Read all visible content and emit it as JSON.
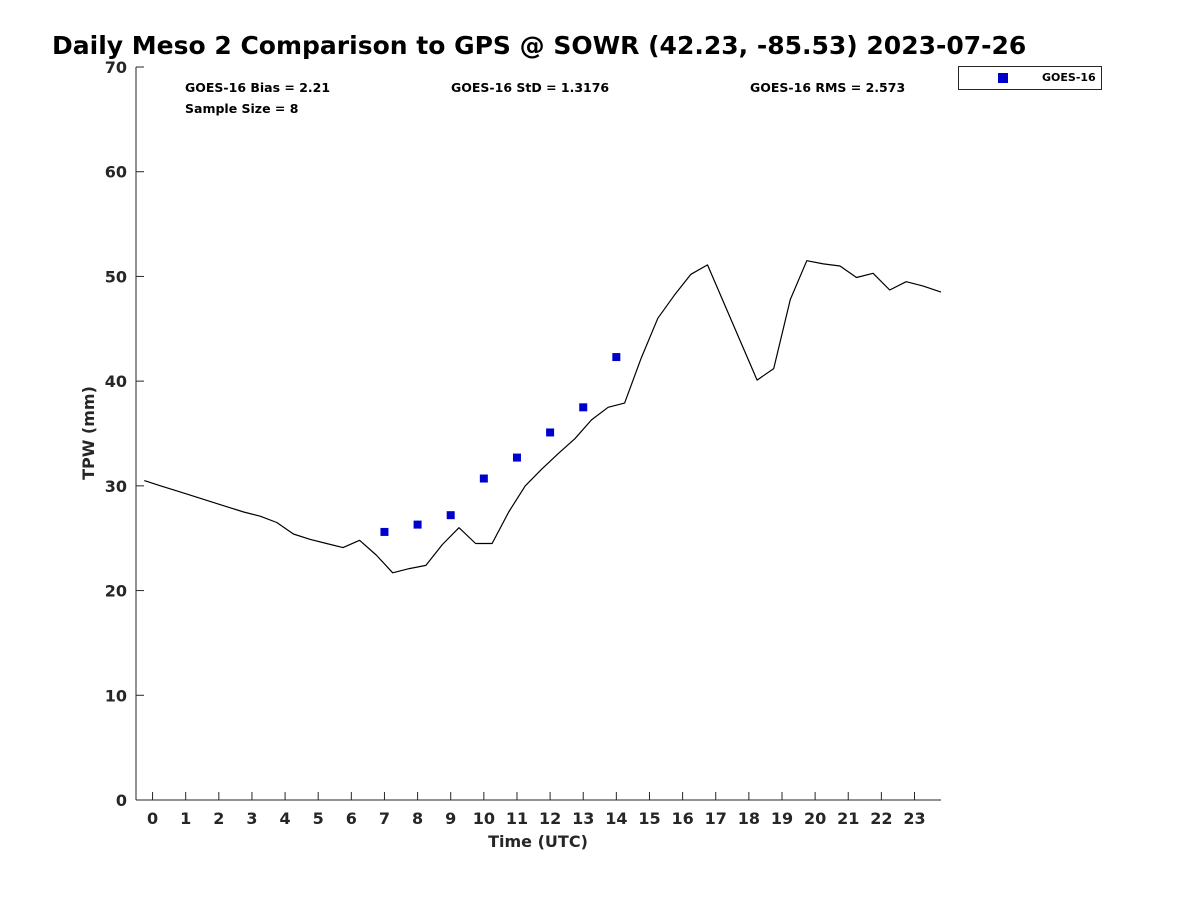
{
  "chart_data": {
    "type": "line",
    "title": "Daily Meso 2 Comparison to GPS @ SOWR (42.23, -85.53) 2023-07-26",
    "xlabel": "Time (UTC)",
    "ylabel": "TPW (mm)",
    "xlim": [
      -0.5,
      23.8
    ],
    "ylim": [
      0,
      70
    ],
    "xticks": [
      0,
      1,
      2,
      3,
      4,
      5,
      6,
      7,
      8,
      9,
      10,
      11,
      12,
      13,
      14,
      15,
      16,
      17,
      18,
      19,
      20,
      21,
      22,
      23
    ],
    "yticks": [
      0,
      10,
      20,
      30,
      40,
      50,
      60,
      70
    ],
    "grid": false,
    "legend_position": "top-right",
    "stats": {
      "bias": "GOES-16 Bias = 2.21",
      "std": "GOES-16 StD = 1.3176",
      "rms": "GOES-16 RMS = 2.573",
      "sample": "Sample Size = 8"
    },
    "series": [
      {
        "kind": "line",
        "color": "#000000",
        "x": [
          -0.25,
          0.25,
          0.75,
          1.25,
          1.75,
          2.25,
          2.75,
          3.25,
          3.75,
          4.25,
          4.75,
          5.25,
          5.75,
          6.25,
          6.75,
          7.25,
          7.75,
          8.25,
          8.75,
          9.25,
          9.75,
          10.25,
          10.75,
          11.25,
          11.75,
          12.25,
          12.75,
          13.25,
          13.75,
          14.25,
          14.75,
          15.25,
          15.75,
          16.25,
          16.75,
          18.25,
          18.75,
          19.25,
          19.75,
          20.25,
          20.75,
          21.25,
          21.75,
          22.25,
          22.75,
          23.25,
          23.8
        ],
        "y": [
          30.5,
          30.0,
          29.5,
          29.0,
          28.5,
          28.0,
          27.5,
          27.1,
          26.5,
          25.4,
          24.9,
          24.5,
          24.1,
          24.8,
          23.4,
          21.7,
          22.1,
          22.4,
          24.4,
          26.0,
          24.5,
          24.5,
          27.5,
          30.0,
          31.6,
          33.1,
          34.5,
          36.3,
          37.5,
          37.9,
          42.2,
          46.0,
          48.2,
          50.2,
          51.1,
          40.1,
          41.2,
          47.8,
          51.5,
          51.2,
          51.0,
          49.9,
          50.3,
          48.7,
          49.5,
          49.1,
          48.5
        ]
      },
      {
        "kind": "scatter",
        "name": "GOES-16",
        "color": "#0000cc",
        "x": [
          7,
          8,
          9,
          10,
          11,
          12,
          13,
          14
        ],
        "y": [
          25.6,
          26.3,
          27.2,
          30.7,
          32.7,
          35.1,
          37.5,
          42.3
        ]
      }
    ]
  }
}
